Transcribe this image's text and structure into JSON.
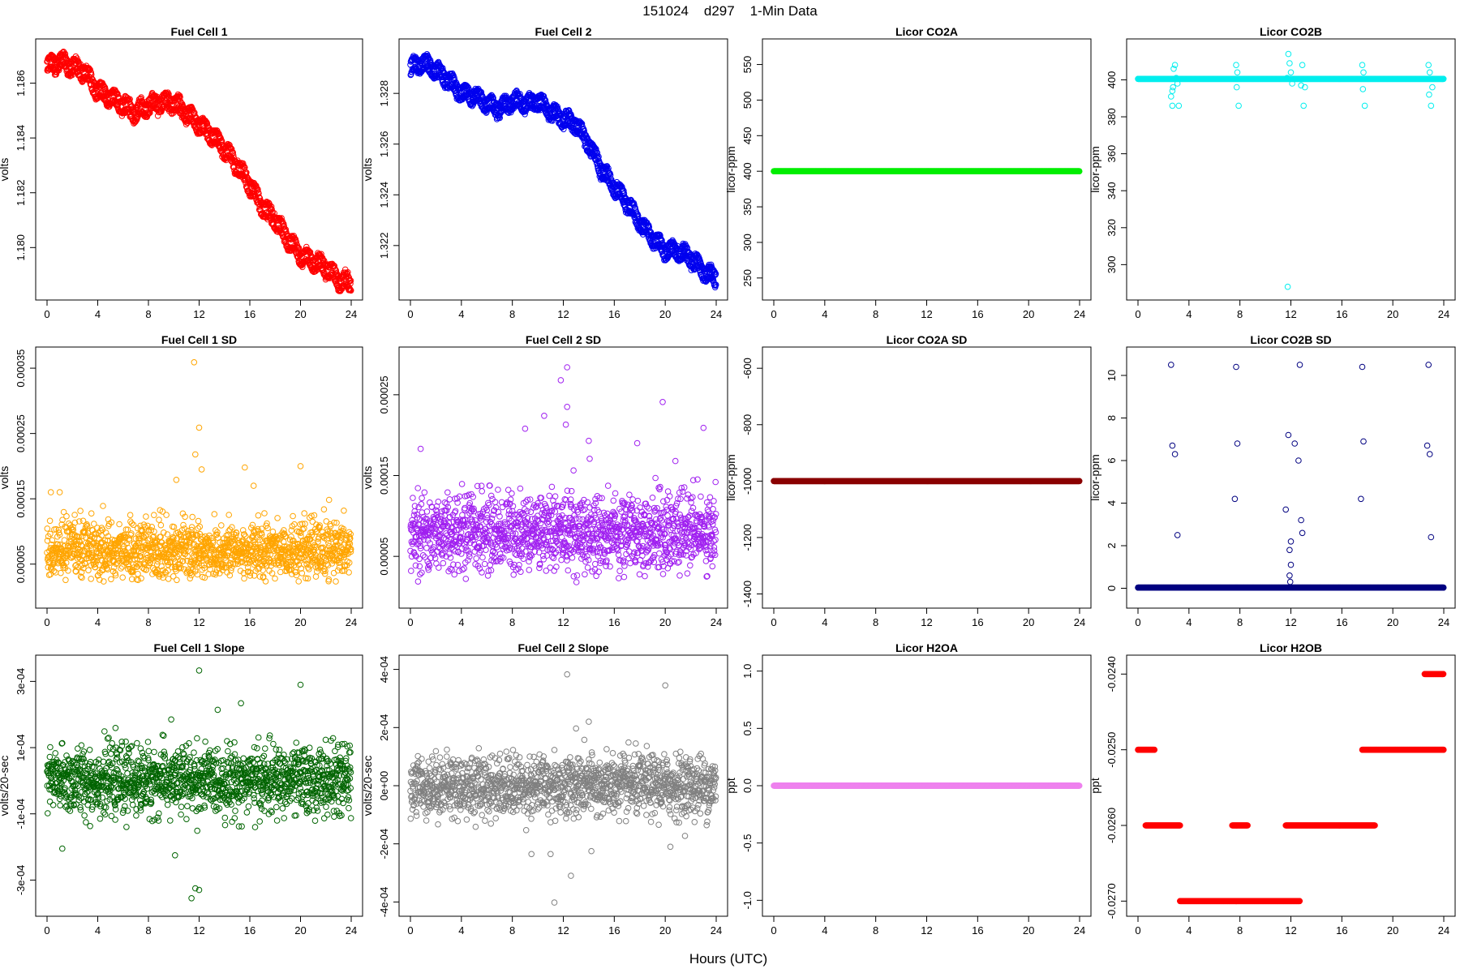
{
  "suptitle": "151024    d297    1-Min Data",
  "x_label": "Hours (UTC)",
  "chart_data": [
    {
      "type": "scatter",
      "title": "Fuel Cell 1",
      "ylabel": "volts",
      "color": "#ff0000",
      "xlim": [
        0,
        24
      ],
      "ylim": [
        1.1785,
        1.1872
      ],
      "xticks": [
        0,
        4,
        8,
        12,
        16,
        20,
        24
      ],
      "yticks": [
        1.18,
        1.182,
        1.184,
        1.186
      ],
      "ytick_labels": [
        "1.180",
        "1.182",
        "1.184",
        "1.186"
      ],
      "band_offset": 0.0004,
      "trend": [
        [
          0,
          1.1866
        ],
        [
          1,
          1.1868
        ],
        [
          2,
          1.1866
        ],
        [
          3,
          1.1864
        ],
        [
          4,
          1.1857
        ],
        [
          5,
          1.1855
        ],
        [
          6,
          1.1852
        ],
        [
          7,
          1.1849
        ],
        [
          8,
          1.1852
        ],
        [
          9,
          1.1853
        ],
        [
          10,
          1.1853
        ],
        [
          11,
          1.1849
        ],
        [
          12,
          1.1845
        ],
        [
          13,
          1.1841
        ],
        [
          14,
          1.1836
        ],
        [
          15,
          1.183
        ],
        [
          16,
          1.1823
        ],
        [
          17,
          1.1815
        ],
        [
          18,
          1.181
        ],
        [
          19,
          1.1803
        ],
        [
          20,
          1.1797
        ],
        [
          21,
          1.1795
        ],
        [
          22,
          1.1793
        ],
        [
          23,
          1.1788
        ],
        [
          24,
          1.1787
        ]
      ]
    },
    {
      "type": "scatter",
      "title": "Fuel Cell 2",
      "ylabel": "volts",
      "color": "#0000ee",
      "xlim": [
        0,
        24
      ],
      "ylim": [
        1.3203,
        1.3297
      ],
      "xticks": [
        0,
        4,
        8,
        12,
        16,
        20,
        24
      ],
      "yticks": [
        1.322,
        1.324,
        1.326,
        1.328
      ],
      "ytick_labels": [
        "1.322",
        "1.324",
        "1.326",
        "1.328"
      ],
      "band_offset": 0.0004,
      "trend": [
        [
          0,
          1.329
        ],
        [
          1,
          1.3292
        ],
        [
          2,
          1.3289
        ],
        [
          3,
          1.3285
        ],
        [
          4,
          1.328
        ],
        [
          5,
          1.3279
        ],
        [
          6,
          1.3276
        ],
        [
          7,
          1.3274
        ],
        [
          8,
          1.3277
        ],
        [
          9,
          1.3276
        ],
        [
          10,
          1.3277
        ],
        [
          11,
          1.3273
        ],
        [
          12,
          1.327
        ],
        [
          13,
          1.3268
        ],
        [
          14,
          1.326
        ],
        [
          15,
          1.325
        ],
        [
          16,
          1.3243
        ],
        [
          17,
          1.3237
        ],
        [
          18,
          1.3229
        ],
        [
          19,
          1.3223
        ],
        [
          20,
          1.3218
        ],
        [
          21,
          1.3218
        ],
        [
          22,
          1.3215
        ],
        [
          23,
          1.321
        ],
        [
          24,
          1.3207
        ]
      ]
    },
    {
      "type": "scatter",
      "title": "Licor CO2A",
      "ylabel": "licor-ppm",
      "color": "#00ee00",
      "xlim": [
        0,
        24
      ],
      "ylim": [
        235,
        570
      ],
      "xticks": [
        0,
        4,
        8,
        12,
        16,
        20,
        24
      ],
      "yticks": [
        250,
        300,
        350,
        400,
        450,
        500,
        550
      ],
      "ytick_labels": [
        "250",
        "300",
        "350",
        "400",
        "450",
        "500",
        "550"
      ],
      "constant": 400
    },
    {
      "type": "scatter",
      "title": "Licor CO2B",
      "ylabel": "licor-ppm",
      "color": "#00eeee",
      "xlim": [
        0,
        24
      ],
      "ylim": [
        287,
        416
      ],
      "xticks": [
        0,
        4,
        8,
        12,
        16,
        20,
        24
      ],
      "yticks": [
        300,
        320,
        340,
        360,
        380,
        400
      ],
      "ytick_labels": [
        "300",
        "320",
        "340",
        "360",
        "380",
        "400"
      ],
      "constant": 400.5,
      "outliers": [
        [
          2.6,
          391
        ],
        [
          2.7,
          394
        ],
        [
          2.75,
          396
        ],
        [
          2.8,
          406
        ],
        [
          2.9,
          408
        ],
        [
          3.0,
          401
        ],
        [
          3.1,
          398
        ],
        [
          3.2,
          386
        ],
        [
          2.7,
          386
        ],
        [
          7.7,
          408
        ],
        [
          7.8,
          404
        ],
        [
          7.9,
          386
        ],
        [
          7.75,
          396
        ],
        [
          11.7,
          401
        ],
        [
          11.8,
          414
        ],
        [
          11.9,
          409
        ],
        [
          12.0,
          404
        ],
        [
          12.1,
          398
        ],
        [
          11.75,
          288
        ],
        [
          12.8,
          397
        ],
        [
          12.9,
          408
        ],
        [
          13.0,
          386
        ],
        [
          13.1,
          396
        ],
        [
          17.6,
          408
        ],
        [
          17.7,
          404
        ],
        [
          17.8,
          386
        ],
        [
          17.65,
          395
        ],
        [
          22.8,
          408
        ],
        [
          22.9,
          404
        ],
        [
          23.0,
          386
        ],
        [
          23.1,
          396
        ],
        [
          22.85,
          392
        ]
      ]
    },
    {
      "type": "scatter",
      "title": "Fuel Cell 1 SD",
      "ylabel": "volts",
      "color": "#ffa500",
      "xlim": [
        0,
        24
      ],
      "ylim": [
        0.0,
        0.000365
      ],
      "xticks": [
        0,
        4,
        8,
        12,
        16,
        20,
        24
      ],
      "yticks": [
        5e-05,
        0.00015,
        0.00025,
        0.00035
      ],
      "ytick_labels": [
        "0.00005",
        "0.00015",
        "0.00025",
        "0.00035"
      ],
      "center": 7e-05,
      "spread": 2.2e-05,
      "outliers": [
        [
          11.6,
          0.000359
        ],
        [
          12.0,
          0.000259
        ],
        [
          11.7,
          0.000218
        ],
        [
          12.2,
          0.000195
        ],
        [
          15.6,
          0.000198
        ],
        [
          20.0,
          0.0002
        ],
        [
          10.2,
          0.000179
        ],
        [
          1.0,
          0.00016
        ],
        [
          0.3,
          0.00016
        ],
        [
          16.3,
          0.00017
        ]
      ]
    },
    {
      "type": "scatter",
      "title": "Fuel Cell 2 SD",
      "ylabel": "volts",
      "color": "#a020f0",
      "xlim": [
        0,
        24
      ],
      "ylim": [
        0.0,
        0.000295
      ],
      "xticks": [
        0,
        4,
        8,
        12,
        16,
        20,
        24
      ],
      "yticks": [
        5e-05,
        0.00015,
        0.00025
      ],
      "ytick_labels": [
        "0.00005",
        "0.00015",
        "0.00025"
      ],
      "center": 8e-05,
      "spread": 2.4e-05,
      "outliers": [
        [
          12.3,
          0.000284
        ],
        [
          11.8,
          0.000268
        ],
        [
          12.3,
          0.000235
        ],
        [
          19.8,
          0.000241
        ],
        [
          10.5,
          0.000224
        ],
        [
          9.0,
          0.000208
        ],
        [
          12.2,
          0.000213
        ],
        [
          14.0,
          0.000193
        ],
        [
          17.8,
          0.00019
        ],
        [
          0.8,
          0.000183
        ],
        [
          20.8,
          0.000168
        ],
        [
          23.0,
          0.000209
        ]
      ]
    },
    {
      "type": "scatter",
      "title": "Licor CO2A SD",
      "ylabel": "licor-ppm",
      "color": "#8b0000",
      "xlim": [
        0,
        24
      ],
      "ylim": [
        -1410,
        -565
      ],
      "xticks": [
        0,
        4,
        8,
        12,
        16,
        20,
        24
      ],
      "yticks": [
        -1400,
        -1200,
        -1000,
        -800,
        -600
      ],
      "ytick_labels": [
        "-1400",
        "-1200",
        "-1000",
        "-800",
        "-600"
      ],
      "constant": -1000
    },
    {
      "type": "scatter",
      "title": "Licor CO2B SD",
      "ylabel": "licor-ppm",
      "color": "#000080",
      "xlim": [
        0,
        24
      ],
      "ylim": [
        -0.4,
        10.8
      ],
      "xticks": [
        0,
        4,
        8,
        12,
        16,
        20,
        24
      ],
      "yticks": [
        0,
        2,
        4,
        6,
        8,
        10
      ],
      "ytick_labels": [
        "0",
        "2",
        "4",
        "6",
        "8",
        "10"
      ],
      "constant": 0.03,
      "outliers": [
        [
          2.6,
          10.5
        ],
        [
          2.7,
          6.7
        ],
        [
          2.9,
          6.3
        ],
        [
          3.1,
          2.5
        ],
        [
          7.6,
          4.2
        ],
        [
          7.7,
          10.4
        ],
        [
          7.8,
          6.8
        ],
        [
          11.6,
          3.7
        ],
        [
          11.8,
          7.2
        ],
        [
          12.0,
          2.2
        ],
        [
          11.9,
          1.8
        ],
        [
          12.0,
          1.1
        ],
        [
          11.9,
          0.6
        ],
        [
          11.95,
          0.3
        ],
        [
          12.3,
          6.8
        ],
        [
          12.6,
          6.0
        ],
        [
          12.7,
          10.5
        ],
        [
          12.8,
          3.2
        ],
        [
          12.9,
          2.6
        ],
        [
          17.5,
          4.2
        ],
        [
          17.6,
          10.4
        ],
        [
          17.7,
          6.9
        ],
        [
          22.7,
          6.7
        ],
        [
          22.8,
          10.5
        ],
        [
          22.9,
          6.3
        ],
        [
          23.0,
          2.4
        ]
      ]
    },
    {
      "type": "scatter",
      "title": "Fuel Cell 1 Slope",
      "ylabel": "volts/20-sec",
      "color": "#006400",
      "xlim": [
        0,
        24
      ],
      "ylim": [
        -0.000375,
        0.000345
      ],
      "xticks": [
        0,
        4,
        8,
        12,
        16,
        20,
        24
      ],
      "yticks": [
        -0.0003,
        -0.0001,
        0.0001,
        0.0003
      ],
      "ytick_labels": [
        "-3e-04",
        "-1e-04",
        "1e-04",
        "3e-04"
      ],
      "center": 0.0,
      "spread": 5e-05,
      "outliers": [
        [
          12.0,
          0.000333
        ],
        [
          20.0,
          0.00029
        ],
        [
          15.3,
          0.000234
        ],
        [
          11.4,
          -0.000355
        ],
        [
          12.0,
          -0.00033
        ],
        [
          11.7,
          -0.000325
        ],
        [
          10.1,
          -0.000225
        ],
        [
          1.2,
          -0.000205
        ],
        [
          9.8,
          0.000185
        ]
      ]
    },
    {
      "type": "scatter",
      "title": "Fuel Cell 2 Slope",
      "ylabel": "volts/20-sec",
      "color": "#808080",
      "xlim": [
        0,
        24
      ],
      "ylim": [
        -0.00041,
        0.00041
      ],
      "xticks": [
        0,
        4,
        8,
        12,
        16,
        20,
        24
      ],
      "yticks": [
        -0.0004,
        -0.0002,
        0.0,
        0.0002,
        0.0004
      ],
      "ytick_labels": [
        "-4e-04",
        "-2e-04",
        "0e+00",
        "2e-04",
        "4e-04"
      ],
      "center": 0.0,
      "spread": 5.2e-05,
      "outliers": [
        [
          12.3,
          0.000383
        ],
        [
          20.0,
          0.000345
        ],
        [
          11.3,
          -0.000402
        ],
        [
          12.6,
          -0.00031
        ],
        [
          14.2,
          -0.000225
        ],
        [
          11.0,
          -0.000235
        ],
        [
          9.5,
          -0.000235
        ],
        [
          13.0,
          0.000197
        ],
        [
          14.0,
          0.00022
        ],
        [
          20.4,
          -0.00021
        ]
      ]
    },
    {
      "type": "scatter",
      "title": "Licor H2OA",
      "ylabel": "ppt",
      "color": "#ee82ee",
      "xlim": [
        0,
        24
      ],
      "ylim": [
        -1.04,
        1.04
      ],
      "xticks": [
        0,
        4,
        8,
        12,
        16,
        20,
        24
      ],
      "yticks": [
        -1.0,
        -0.5,
        0.0,
        0.5,
        1.0
      ],
      "ytick_labels": [
        "-1.0",
        "-0.5",
        "0.0",
        "0.5",
        "1.0"
      ],
      "constant": 0.0
    },
    {
      "type": "scatter",
      "title": "Licor H2OB",
      "ylabel": "ppt",
      "color": "#ff0000",
      "xlim": [
        0,
        24
      ],
      "ylim": [
        -0.02705,
        -0.0239
      ],
      "xticks": [
        0,
        4,
        8,
        12,
        16,
        20,
        24
      ],
      "yticks": [
        -0.027,
        -0.026,
        -0.025,
        -0.024
      ],
      "ytick_labels": [
        "-0.0270",
        "-0.0260",
        "-0.0250",
        "-0.0240"
      ],
      "segments": [
        [
          0.0,
          1.3,
          -0.025
        ],
        [
          0.6,
          3.3,
          -0.026
        ],
        [
          3.3,
          12.7,
          -0.027
        ],
        [
          7.4,
          8.6,
          -0.026
        ],
        [
          11.6,
          18.6,
          -0.026
        ],
        [
          17.6,
          24.0,
          -0.025
        ],
        [
          22.5,
          24.0,
          -0.024
        ]
      ]
    }
  ]
}
